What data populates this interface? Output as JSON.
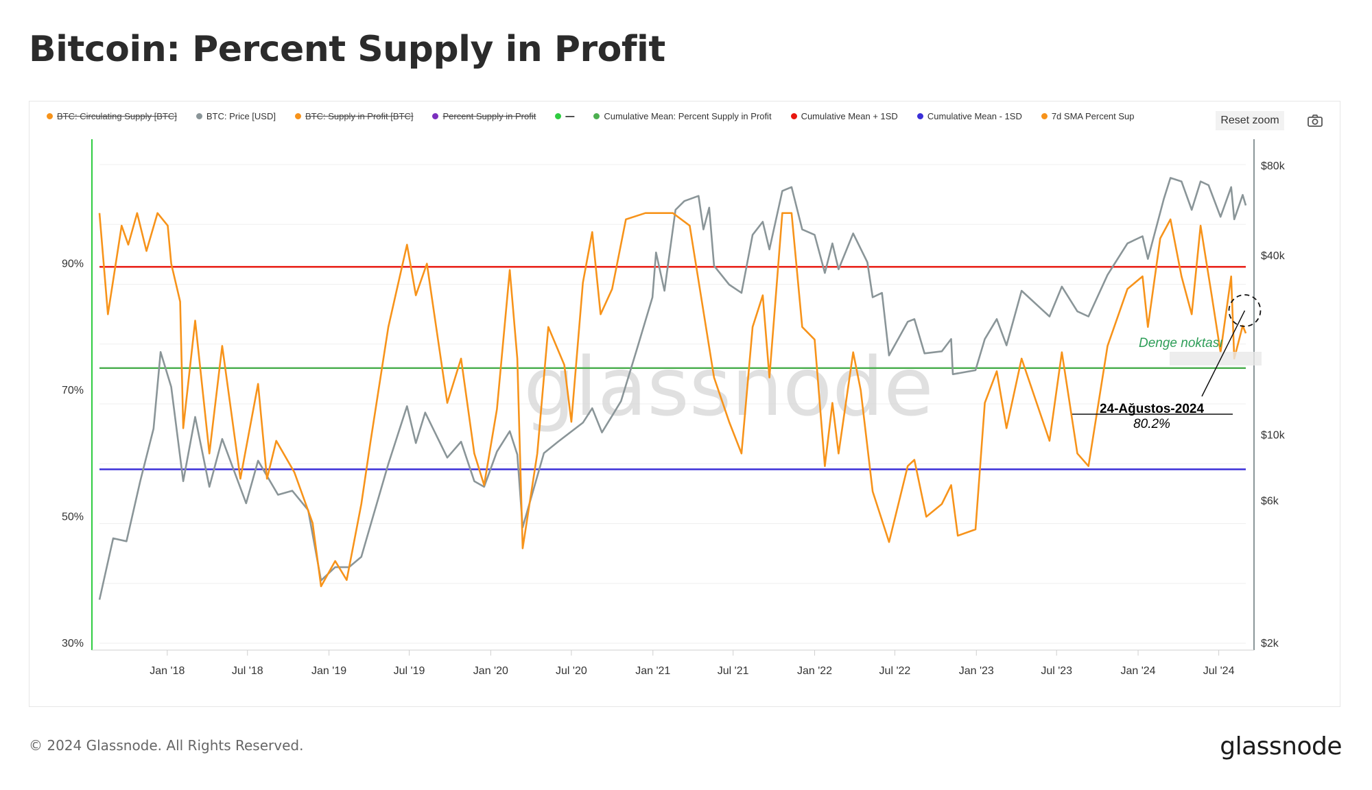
{
  "page": {
    "title": "Bitcoin: Percent Supply in Profit",
    "copyright": "© 2024 Glassnode. All Rights Reserved.",
    "brand": "glassnode",
    "reset_zoom_label": "Reset zoom",
    "camera_icon": "camera-icon"
  },
  "legend": [
    {
      "label": "BTC: Circulating Supply [BTC]",
      "color": "#f7931a",
      "hidden": true
    },
    {
      "label": "BTC: Price [USD]",
      "color": "#8a9598",
      "hidden": false
    },
    {
      "label": "BTC: Supply in Profit [BTC]",
      "color": "#f7931a",
      "hidden": true
    },
    {
      "label": "Percent Supply in Profit",
      "color": "#7b2fbe",
      "hidden": true
    },
    {
      "label": "—",
      "color": "#2ecc40",
      "hidden": true
    },
    {
      "label": "Cumulative Mean: Percent Supply in Profit",
      "color": "#4caf50",
      "hidden": false
    },
    {
      "label": "Cumulative Mean + 1SD",
      "color": "#e8170f",
      "hidden": false
    },
    {
      "label": "Cumulative Mean - 1SD",
      "color": "#3b2fd8",
      "hidden": false
    },
    {
      "label": "7d SMA Percent Sup",
      "color": "#f7931a",
      "hidden": false
    }
  ],
  "chart_data": {
    "type": "line",
    "watermark": "glassnode",
    "x_axis": {
      "range": [
        "2017-08-01",
        "2024-08-31"
      ],
      "tick_labels": [
        "Jan '18",
        "Jul '18",
        "Jan '19",
        "Jul '19",
        "Jan '20",
        "Jul '20",
        "Jan '21",
        "Jul '21",
        "Jan '22",
        "Jul '22",
        "Jan '23",
        "Jul '23",
        "Jan '24",
        "Jul '24"
      ],
      "tick_dates": [
        "2018-01-01",
        "2018-07-01",
        "2019-01-01",
        "2019-07-01",
        "2020-01-01",
        "2020-07-01",
        "2021-01-01",
        "2021-07-01",
        "2022-01-01",
        "2022-07-01",
        "2023-01-01",
        "2023-07-01",
        "2024-01-01",
        "2024-07-01"
      ]
    },
    "y_left": {
      "range": [
        30,
        110
      ],
      "ticks": [
        30,
        50,
        70,
        90
      ],
      "tick_labels": [
        "30%",
        "50%",
        "70%",
        "90%"
      ]
    },
    "y_right": {
      "scale": "log",
      "range": [
        2000,
        100000
      ],
      "ticks": [
        2000,
        6000,
        10000,
        40000,
        80000
      ],
      "tick_labels": [
        "$2k",
        "$6k",
        "$10k",
        "$40k",
        "$80k"
      ]
    },
    "horizontal_lines": [
      {
        "name": "Cumulative Mean + 1SD",
        "value": 89.5,
        "color": "#e8170f"
      },
      {
        "name": "Cumulative Mean: Percent Supply in Profit",
        "value": 73.5,
        "color": "#4caf50"
      },
      {
        "name": "Cumulative Mean - 1SD",
        "value": 57.5,
        "color": "#3b2fd8"
      }
    ],
    "series": [
      {
        "name": "BTC: Price [USD]",
        "axis": "right",
        "color": "#8a9598",
        "points": [
          [
            "2017-08-01",
            2800
          ],
          [
            "2017-09-01",
            4500
          ],
          [
            "2017-10-01",
            4400
          ],
          [
            "2017-11-01",
            7000
          ],
          [
            "2017-12-01",
            10500
          ],
          [
            "2017-12-17",
            19000
          ],
          [
            "2018-01-10",
            14500
          ],
          [
            "2018-02-06",
            7000
          ],
          [
            "2018-03-05",
            11500
          ],
          [
            "2018-04-06",
            6700
          ],
          [
            "2018-05-05",
            9700
          ],
          [
            "2018-06-28",
            5900
          ],
          [
            "2018-07-25",
            8200
          ],
          [
            "2018-09-08",
            6300
          ],
          [
            "2018-10-10",
            6500
          ],
          [
            "2018-11-15",
            5600
          ],
          [
            "2018-12-14",
            3250
          ],
          [
            "2019-01-15",
            3600
          ],
          [
            "2019-02-15",
            3600
          ],
          [
            "2019-03-15",
            3900
          ],
          [
            "2019-04-05",
            5000
          ],
          [
            "2019-05-15",
            8000
          ],
          [
            "2019-06-26",
            12500
          ],
          [
            "2019-07-16",
            9400
          ],
          [
            "2019-08-06",
            11900
          ],
          [
            "2019-09-25",
            8400
          ],
          [
            "2019-10-26",
            9500
          ],
          [
            "2019-11-25",
            7000
          ],
          [
            "2019-12-17",
            6700
          ],
          [
            "2020-01-15",
            8800
          ],
          [
            "2020-02-13",
            10300
          ],
          [
            "2020-03-01",
            8600
          ],
          [
            "2020-03-13",
            4900
          ],
          [
            "2020-04-30",
            8700
          ],
          [
            "2020-06-01",
            9500
          ],
          [
            "2020-07-27",
            11000
          ],
          [
            "2020-08-17",
            12300
          ],
          [
            "2020-09-08",
            10200
          ],
          [
            "2020-10-21",
            13000
          ],
          [
            "2020-11-24",
            19000
          ],
          [
            "2020-12-31",
            29000
          ],
          [
            "2021-01-08",
            41000
          ],
          [
            "2021-01-27",
            30500
          ],
          [
            "2021-02-21",
            57000
          ],
          [
            "2021-03-13",
            61000
          ],
          [
            "2021-04-14",
            63500
          ],
          [
            "2021-04-25",
            49000
          ],
          [
            "2021-05-08",
            58000
          ],
          [
            "2021-05-19",
            37000
          ],
          [
            "2021-06-22",
            32000
          ],
          [
            "2021-07-20",
            30000
          ],
          [
            "2021-08-14",
            47000
          ],
          [
            "2021-09-06",
            52000
          ],
          [
            "2021-09-21",
            42000
          ],
          [
            "2021-10-20",
            66000
          ],
          [
            "2021-11-10",
            68000
          ],
          [
            "2021-12-04",
            49000
          ],
          [
            "2022-01-01",
            47000
          ],
          [
            "2022-01-24",
            35000
          ],
          [
            "2022-02-10",
            44000
          ],
          [
            "2022-02-24",
            36000
          ],
          [
            "2022-03-29",
            47500
          ],
          [
            "2022-04-30",
            38000
          ],
          [
            "2022-05-12",
            29000
          ],
          [
            "2022-06-02",
            30000
          ],
          [
            "2022-06-18",
            18500
          ],
          [
            "2022-07-30",
            24000
          ],
          [
            "2022-08-14",
            24500
          ],
          [
            "2022-09-06",
            18800
          ],
          [
            "2022-10-15",
            19100
          ],
          [
            "2022-11-05",
            21000
          ],
          [
            "2022-11-09",
            16000
          ],
          [
            "2022-12-30",
            16500
          ],
          [
            "2023-01-20",
            21000
          ],
          [
            "2023-02-16",
            24500
          ],
          [
            "2023-03-10",
            20000
          ],
          [
            "2023-04-13",
            30500
          ],
          [
            "2023-06-15",
            25000
          ],
          [
            "2023-07-13",
            31500
          ],
          [
            "2023-08-17",
            26000
          ],
          [
            "2023-09-11",
            25000
          ],
          [
            "2023-10-24",
            34500
          ],
          [
            "2023-12-08",
            44000
          ],
          [
            "2024-01-11",
            46500
          ],
          [
            "2024-01-23",
            39000
          ],
          [
            "2024-02-28",
            62000
          ],
          [
            "2024-03-14",
            73000
          ],
          [
            "2024-04-08",
            71000
          ],
          [
            "2024-05-01",
            57000
          ],
          [
            "2024-05-21",
            71000
          ],
          [
            "2024-06-08",
            69000
          ],
          [
            "2024-07-05",
            54000
          ],
          [
            "2024-07-29",
            68000
          ],
          [
            "2024-08-05",
            53000
          ],
          [
            "2024-08-24",
            64000
          ],
          [
            "2024-08-31",
            59000
          ]
        ]
      },
      {
        "name": "7d SMA Percent Sup",
        "axis": "left",
        "color": "#f7931a",
        "points": [
          [
            "2017-08-01",
            98
          ],
          [
            "2017-08-20",
            82
          ],
          [
            "2017-09-20",
            96
          ],
          [
            "2017-10-05",
            93
          ],
          [
            "2017-10-25",
            98
          ],
          [
            "2017-11-15",
            92
          ],
          [
            "2017-12-10",
            98
          ],
          [
            "2018-01-02",
            96
          ],
          [
            "2018-01-10",
            90
          ],
          [
            "2018-01-30",
            84
          ],
          [
            "2018-02-06",
            64
          ],
          [
            "2018-03-05",
            81
          ],
          [
            "2018-04-06",
            60
          ],
          [
            "2018-05-05",
            77
          ],
          [
            "2018-06-15",
            56
          ],
          [
            "2018-07-25",
            71
          ],
          [
            "2018-08-14",
            56
          ],
          [
            "2018-09-04",
            62
          ],
          [
            "2018-10-15",
            57
          ],
          [
            "2018-11-25",
            49
          ],
          [
            "2018-12-14",
            39
          ],
          [
            "2019-01-15",
            43
          ],
          [
            "2019-02-10",
            40
          ],
          [
            "2019-03-15",
            52
          ],
          [
            "2019-04-05",
            62
          ],
          [
            "2019-05-15",
            80
          ],
          [
            "2019-06-26",
            93
          ],
          [
            "2019-07-16",
            85
          ],
          [
            "2019-08-10",
            90
          ],
          [
            "2019-09-25",
            68
          ],
          [
            "2019-10-26",
            75
          ],
          [
            "2019-11-25",
            60
          ],
          [
            "2019-12-17",
            55
          ],
          [
            "2020-01-15",
            67
          ],
          [
            "2020-02-13",
            89
          ],
          [
            "2020-03-01",
            75
          ],
          [
            "2020-03-13",
            45
          ],
          [
            "2020-04-15",
            60
          ],
          [
            "2020-05-10",
            80
          ],
          [
            "2020-06-15",
            74
          ],
          [
            "2020-07-01",
            65
          ],
          [
            "2020-07-27",
            87
          ],
          [
            "2020-08-17",
            95
          ],
          [
            "2020-09-05",
            82
          ],
          [
            "2020-10-01",
            86
          ],
          [
            "2020-11-01",
            97
          ],
          [
            "2020-12-15",
            98
          ],
          [
            "2021-02-15",
            98
          ],
          [
            "2021-03-25",
            96
          ],
          [
            "2021-05-19",
            72
          ],
          [
            "2021-06-22",
            65
          ],
          [
            "2021-07-20",
            60
          ],
          [
            "2021-08-14",
            80
          ],
          [
            "2021-09-06",
            85
          ],
          [
            "2021-09-21",
            72
          ],
          [
            "2021-10-20",
            98
          ],
          [
            "2021-11-10",
            98
          ],
          [
            "2021-12-04",
            80
          ],
          [
            "2022-01-01",
            78
          ],
          [
            "2022-01-24",
            58
          ],
          [
            "2022-02-10",
            68
          ],
          [
            "2022-02-24",
            60
          ],
          [
            "2022-03-29",
            76
          ],
          [
            "2022-04-15",
            70
          ],
          [
            "2022-05-12",
            54
          ],
          [
            "2022-06-18",
            46
          ],
          [
            "2022-07-30",
            58
          ],
          [
            "2022-08-14",
            59
          ],
          [
            "2022-09-10",
            50
          ],
          [
            "2022-10-15",
            52
          ],
          [
            "2022-11-05",
            55
          ],
          [
            "2022-11-20",
            47
          ],
          [
            "2022-12-30",
            48
          ],
          [
            "2023-01-20",
            68
          ],
          [
            "2023-02-16",
            73
          ],
          [
            "2023-03-10",
            64
          ],
          [
            "2023-04-13",
            75
          ],
          [
            "2023-06-15",
            62
          ],
          [
            "2023-07-13",
            76
          ],
          [
            "2023-08-17",
            60
          ],
          [
            "2023-09-11",
            58
          ],
          [
            "2023-10-24",
            77
          ],
          [
            "2023-12-08",
            86
          ],
          [
            "2024-01-11",
            88
          ],
          [
            "2024-01-23",
            80
          ],
          [
            "2024-02-20",
            94
          ],
          [
            "2024-03-14",
            97
          ],
          [
            "2024-04-08",
            88
          ],
          [
            "2024-05-01",
            82
          ],
          [
            "2024-05-21",
            96
          ],
          [
            "2024-06-15",
            85
          ],
          [
            "2024-07-05",
            76
          ],
          [
            "2024-07-29",
            88
          ],
          [
            "2024-08-05",
            75
          ],
          [
            "2024-08-24",
            80.2
          ],
          [
            "2024-08-31",
            79
          ]
        ]
      }
    ],
    "annotations": [
      {
        "label": "Denge noktası",
        "color": "#2e9e58",
        "style": "italic"
      },
      {
        "label": "24-Ağustos-2024",
        "color": "#000000",
        "style": "bold"
      },
      {
        "label": "80.2%",
        "color": "#000000",
        "style": "italic"
      }
    ]
  }
}
